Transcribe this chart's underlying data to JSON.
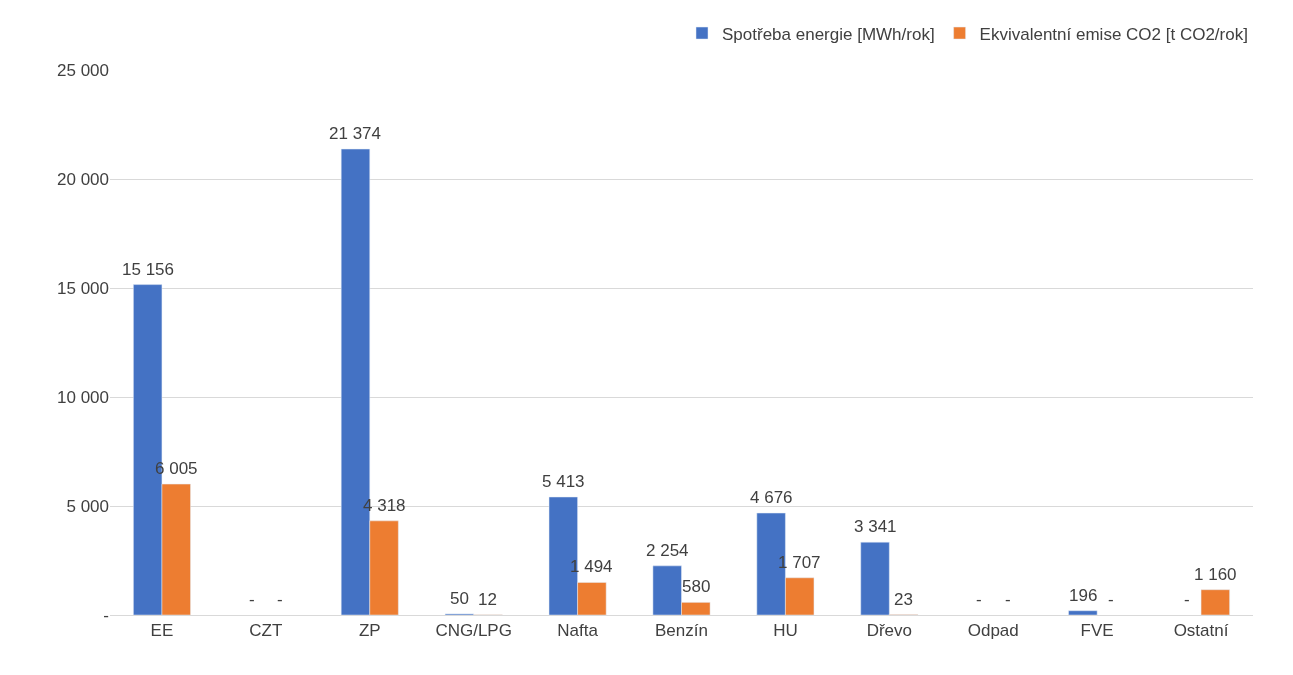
{
  "chart_data": {
    "type": "bar",
    "categories": [
      "EE",
      "CZT",
      "ZP",
      "CNG/LPG",
      "Nafta",
      "Benzín",
      "HU",
      "Dřevo",
      "Odpad",
      "FVE",
      "Ostatní"
    ],
    "series": [
      {
        "name": "Spotřeba energie [MWh/rok]",
        "color": "#4472c4",
        "values": [
          15156,
          null,
          21374,
          50,
          5413,
          2254,
          4676,
          3341,
          null,
          196,
          null
        ],
        "value_labels": [
          "15 156",
          "-",
          "21 374",
          "50",
          "5 413",
          "2 254",
          "4 676",
          "3 341",
          "-",
          "196",
          "-"
        ]
      },
      {
        "name": "Ekvivalentní emise CO2 [t CO2/rok]",
        "color": "#ed7d31",
        "values": [
          6005,
          null,
          4318,
          12,
          1494,
          580,
          1707,
          23,
          null,
          null,
          1160
        ],
        "value_labels": [
          "6 005",
          "-",
          "4 318",
          "12",
          "1 494",
          "580",
          "1 707",
          "23",
          "-",
          "-",
          "1 160"
        ]
      }
    ],
    "ylim": [
      0,
      25000
    ],
    "yticks": [
      {
        "value": 0,
        "label": "-"
      },
      {
        "value": 5000,
        "label": "5 000"
      },
      {
        "value": 10000,
        "label": "10 000"
      },
      {
        "value": 15000,
        "label": "15 000"
      },
      {
        "value": 20000,
        "label": "20 000"
      },
      {
        "value": 25000,
        "label": "25 000"
      }
    ],
    "grid": "y",
    "legend": "top right"
  }
}
